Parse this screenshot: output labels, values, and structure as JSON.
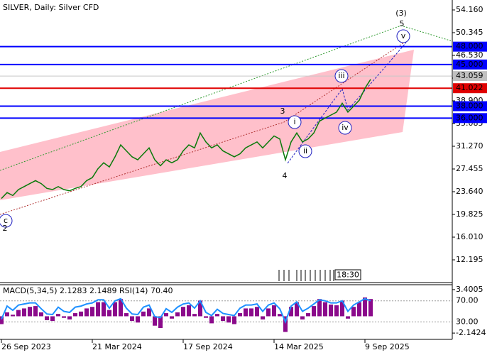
{
  "chart_data": [
    {
      "type": "line",
      "title": "SILVER, Daily:  Silver CFD",
      "color": "#0a7a0a",
      "values": [
        22.5,
        23.5,
        23.0,
        24.0,
        24.5,
        25.0,
        25.5,
        25.0,
        24.2,
        24.0,
        24.5,
        24.0,
        23.8,
        24.2,
        24.5,
        25.5,
        26.0,
        27.5,
        28.5,
        27.8,
        29.5,
        31.5,
        30.5,
        29.5,
        29.0,
        30.0,
        31.0,
        29.0,
        28.0,
        29.0,
        28.5,
        29.0,
        30.5,
        31.5,
        31.0,
        33.5,
        32.0,
        31.0,
        31.5,
        30.5,
        30.0,
        29.5,
        30.0,
        31.0,
        31.5,
        32.0,
        31.0,
        32.0,
        33.0,
        32.5,
        29.0,
        32.0,
        33.5,
        32.0,
        32.5,
        33.5,
        35.5,
        36.0,
        36.5,
        37.0,
        38.5,
        37.0,
        38.0,
        39.0,
        41.0,
        42.5
      ],
      "xlim": [
        0,
        79.375
      ],
      "xticks": [
        {
          "value": 0,
          "label": "26 Sep 2023"
        },
        {
          "value": 16,
          "label": "21 Mar 2024"
        },
        {
          "value": 32,
          "label": "17 Sep 2024"
        },
        {
          "value": 48,
          "label": "14 Mar 2025"
        },
        {
          "value": 64,
          "label": "9 Sep 2025"
        }
      ],
      "ylim": [
        8.38,
        55.83
      ],
      "yticks": [
        {
          "value": 54.16,
          "label": "54.160"
        },
        {
          "value": 50.345,
          "label": "50.345"
        },
        {
          "value": 46.53,
          "label": "46.530"
        },
        {
          "value": 42.715,
          "label": "42.715"
        },
        {
          "value": 38.9,
          "label": "38.900"
        },
        {
          "value": 35.085,
          "label": "35.085"
        },
        {
          "value": 31.27,
          "label": "31.270"
        },
        {
          "value": 27.455,
          "label": "27.455"
        },
        {
          "value": 23.64,
          "label": "23.640"
        },
        {
          "value": 19.825,
          "label": "19.825"
        },
        {
          "value": 16.01,
          "label": "16.010"
        },
        {
          "value": 12.195,
          "label": "12.195"
        }
      ],
      "levels": [
        {
          "value": 48,
          "label": "48.000",
          "color": "#0000ff"
        },
        {
          "value": 45,
          "label": "45.000",
          "color": "#0000ff"
        },
        {
          "value": 41.022,
          "label": "41.022",
          "color": "#e00000"
        },
        {
          "value": 38,
          "label": "38.000",
          "color": "#0000ff"
        },
        {
          "value": 36,
          "label": "36.000",
          "color": "#0000ff"
        }
      ],
      "price_label": {
        "value": 43.059,
        "label": "43.059"
      },
      "annotations": [
        {
          "text": "(3)",
          "color": "#2e9a2e"
        },
        {
          "text": "5",
          "color": "#b03030"
        },
        {
          "text": "v",
          "color": "#2020c0"
        },
        {
          "text": "iii",
          "color": "#2020c0"
        },
        {
          "text": "i",
          "color": "#2020c0"
        },
        {
          "text": "ii",
          "color": "#2020c0"
        },
        {
          "text": "iv",
          "color": "#2020c0"
        },
        {
          "text": "3",
          "color": "#b03030"
        },
        {
          "text": "4",
          "color": "#b03030"
        },
        {
          "text": "c",
          "color": "#2020c0"
        },
        {
          "text": "2",
          "color": "#b03030"
        }
      ],
      "time_label": "18:30"
    },
    {
      "type": "indicator",
      "title": "MACD(5,34,5) 2.1283 2.1489 RSI(14) 70.40",
      "series": [
        {
          "color": "#8b0a8b",
          "values": [
            -1.0,
            0.5,
            0.2,
            0.8,
            1.0,
            1.2,
            1.3,
            0.5,
            -0.5,
            -0.6,
            0.3,
            -0.2,
            -0.4,
            0.4,
            0.6,
            1.0,
            1.2,
            1.8,
            1.8,
            0.8,
            1.8,
            2.2,
            0.4,
            -0.6,
            -0.8,
            0.6,
            1.0,
            -1.2,
            -1.5,
            0.4,
            -0.3,
            0.5,
            1.2,
            1.4,
            0.3,
            2.0,
            -0.2,
            -0.9,
            0.3,
            -0.6,
            -0.8,
            -1.0,
            0.4,
            1.0,
            1.0,
            1.2,
            -0.4,
            1.0,
            1.4,
            0.3,
            -2.0,
            1.2,
            1.8,
            -0.4,
            0.4,
            1.3,
            2.2,
            1.8,
            1.5,
            1.4,
            2.0,
            -0.3,
            1.2,
            1.8,
            2.4,
            2.2
          ]
        },
        {
          "color": "#1e90ff",
          "axis": "y2",
          "values": [
            35,
            60,
            52,
            62,
            64,
            66,
            66,
            55,
            45,
            44,
            58,
            50,
            48,
            58,
            60,
            64,
            66,
            72,
            72,
            56,
            70,
            74,
            56,
            45,
            44,
            58,
            62,
            40,
            38,
            55,
            48,
            58,
            64,
            66,
            56,
            70,
            48,
            42,
            54,
            46,
            44,
            42,
            56,
            62,
            62,
            64,
            50,
            62,
            66,
            55,
            30,
            60,
            68,
            50,
            56,
            64,
            72,
            70,
            66,
            66,
            70,
            50,
            62,
            68,
            74,
            70
          ]
        }
      ],
      "ylim": [
        -2.947,
        4.026
      ],
      "yticks": [
        {
          "value": 3.4005,
          "label": "3.4005"
        },
        {
          "value": -2.1424,
          "label": "-2.1424"
        }
      ],
      "y2lim": [
        -3.33,
        100.67
      ],
      "y2ticks": [
        {
          "value": 70,
          "label": "70.00"
        },
        {
          "value": 30,
          "label": "30.00"
        }
      ]
    }
  ]
}
